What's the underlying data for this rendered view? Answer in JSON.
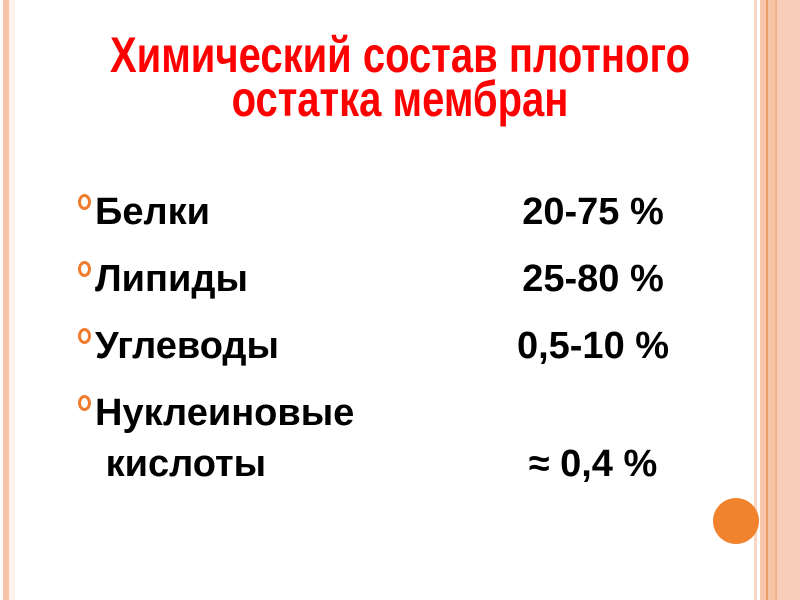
{
  "slide": {
    "title": {
      "line1": "Химический состав плотного",
      "line2": "остатка мембран"
    },
    "items": [
      {
        "label": "Белки",
        "value": "20-75 %"
      },
      {
        "label": "Липиды",
        "value": "25-80 %"
      },
      {
        "label": "Углеводы",
        "value": "0,5-10 %"
      },
      {
        "label": "Нуклеиновые\n кислоты",
        "value": "≈ 0,4 %"
      }
    ]
  },
  "colors": {
    "title_red": "#fe0000",
    "bullet_orange": "#ef7b2c",
    "circle_orange": "#f2832e",
    "stripe_salmon": "#f6c3a9",
    "stripe_dark_orange": "#ea9c69"
  }
}
